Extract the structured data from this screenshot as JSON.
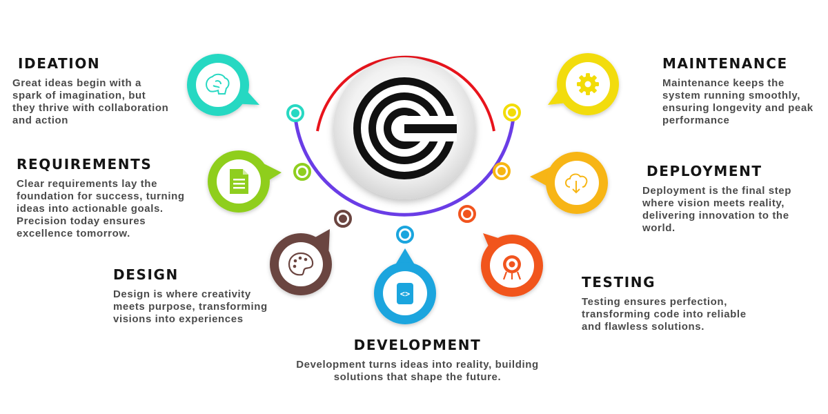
{
  "stages": {
    "ideation": {
      "title": "IDEATION",
      "description": "Great ideas begin with a spark of imagination, but they thrive with collaboration and action",
      "color": "#27d8c2",
      "icon": "brain-icon"
    },
    "requirements": {
      "title": "REQUIREMENTS",
      "description": "Clear requirements lay the foundation for success, turning ideas into actionable goals. Precision today ensures excellence tomorrow.",
      "color": "#8fce1f",
      "icon": "document-icon"
    },
    "design": {
      "title": "DESIGN",
      "description": "Design is where creativity meets purpose, transforming visions into experiences",
      "color": "#6b4540",
      "icon": "palette-icon"
    },
    "development": {
      "title": "DEVELOPMENT",
      "description": "Development turns ideas into reality, building solutions that shape the future.",
      "color": "#1aa5de",
      "icon": "code-icon"
    },
    "testing": {
      "title": "TESTING",
      "description": "Testing ensures perfection, transforming code into reliable and flawless solutions.",
      "color": "#f1541e",
      "icon": "target-icon"
    },
    "deployment": {
      "title": "DEPLOYMENT",
      "description": "Deployment is the final step where vision meets reality, delivering innovation to the world.",
      "color": "#f7b512",
      "icon": "cloud-download-icon"
    },
    "maintenance": {
      "title": "MAINTENANCE",
      "description": "Maintenance keeps the system running smoothly, ensuring longevity and peak performance",
      "color": "#f2dc08",
      "icon": "gear-icon"
    }
  },
  "arc_colors": {
    "top_arc": "#e8141c",
    "bottom_arc": "#6a3de6"
  }
}
